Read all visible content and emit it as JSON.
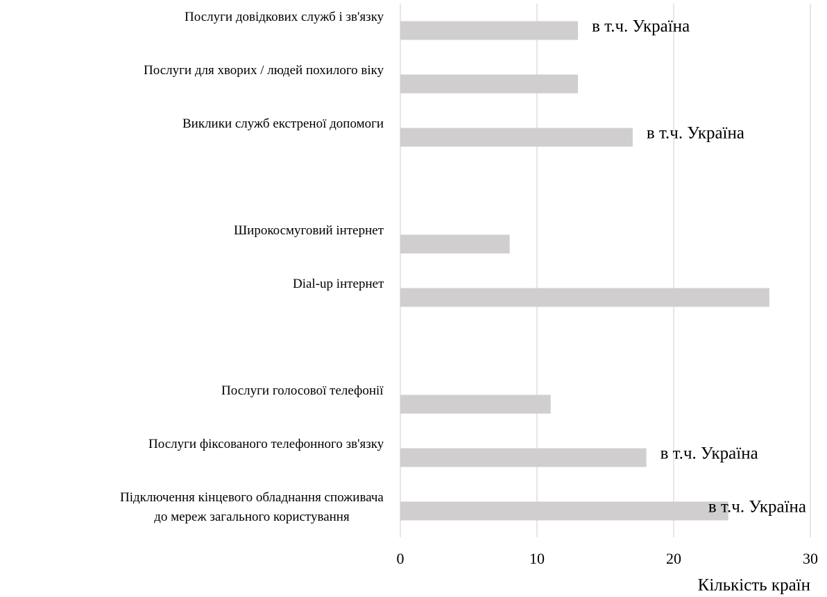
{
  "chart_data": {
    "type": "barh",
    "categories": [
      "Послуги довідкових служб і зв'язку",
      "Послуги для хворих / людей похилого віку",
      "Виклики служб екстреної допомоги",
      null,
      "Широкосмуговий інтернет",
      "Dial-up інтернет",
      null,
      "Послуги голосової телефонії",
      "Послуги фіксованого телефонного зв'язку",
      "Підключення кінцевого обладнання споживача\nдо мереж загального користування"
    ],
    "values": [
      13,
      13,
      17,
      null,
      8,
      27,
      null,
      11,
      18,
      24
    ],
    "annotations": [
      "в т.ч. Україна",
      null,
      "в т.ч. Україна",
      null,
      null,
      null,
      null,
      null,
      "в т.ч. Україна",
      "в т.ч. Україна"
    ],
    "color": "#d0cece",
    "xlim": [
      0,
      30
    ],
    "xticks": [
      0,
      10,
      20,
      30
    ],
    "xlabel": "Кількість країн",
    "grid": true
  }
}
